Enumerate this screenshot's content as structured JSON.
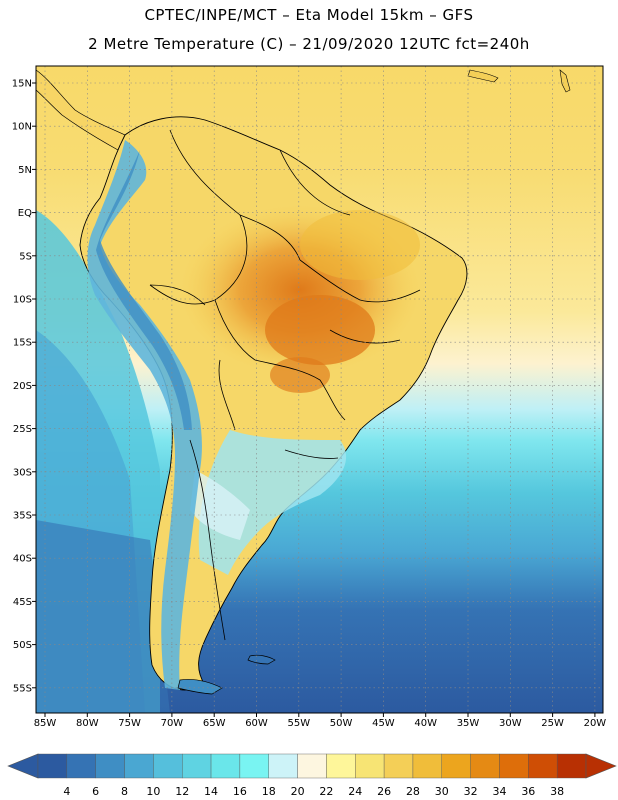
{
  "header": {
    "title_line1": "CPTEC/INPE/MCT –  Eta Model 15km – GFS",
    "title_line2": "2 Metre Temperature (C) – 21/09/2020 12UTC fct=240h"
  },
  "axes": {
    "lat_labels": [
      "15N",
      "10N",
      "5N",
      "EQ",
      "5S",
      "10S",
      "15S",
      "20S",
      "25S",
      "30S",
      "35S",
      "40S",
      "45S",
      "50S",
      "55S"
    ],
    "lon_labels": [
      "85W",
      "80W",
      "75W",
      "70W",
      "65W",
      "60W",
      "55W",
      "50W",
      "45W",
      "40W",
      "35W",
      "30W",
      "25W",
      "20W"
    ]
  },
  "colorbar": {
    "labels": [
      "4",
      "6",
      "8",
      "10",
      "12",
      "14",
      "16",
      "18",
      "20",
      "22",
      "24",
      "26",
      "28",
      "30",
      "32",
      "34",
      "36",
      "38"
    ],
    "colors": [
      "#2c5aa0",
      "#3573b4",
      "#3f8ec4",
      "#4aa7d2",
      "#55bfdc",
      "#5fd3e2",
      "#6ae6ea",
      "#79f4f2",
      "#cdf3f8",
      "#fdf6e0",
      "#fef69a",
      "#f7e474",
      "#f4cf57",
      "#f0bd3a",
      "#eca51e",
      "#e58a14",
      "#de6e0a",
      "#cf4e05",
      "#b83003"
    ],
    "low_color": "#2c5aa0",
    "high_color": "#b83003"
  },
  "colors": {
    "ocean_deep": "#2c5aa0",
    "ocean_mid": "#3f8ec4",
    "ocean_cyan": "#55c7dd",
    "ocean_light": "#7fe6ee",
    "tropic_yellow": "#f6d768",
    "land_hot": "#eca53a",
    "andes_cool": "#5fb6dc"
  }
}
